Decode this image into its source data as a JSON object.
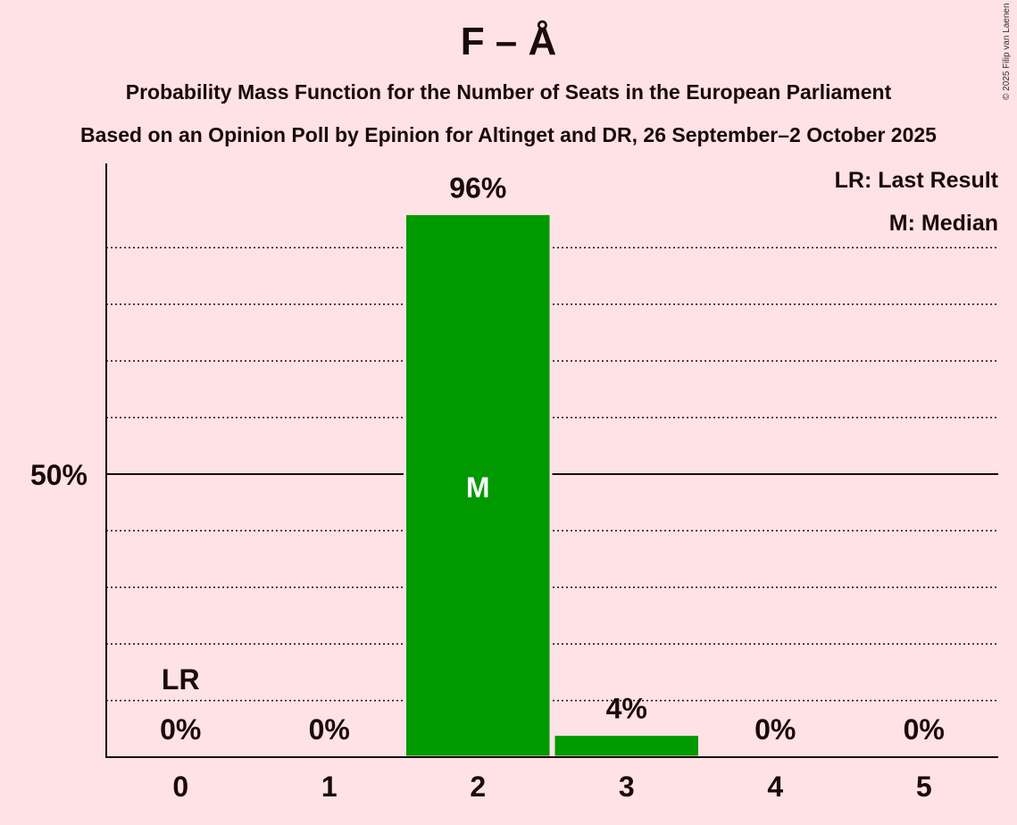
{
  "copyright": "© 2025 Filip van Laenen",
  "chart_data": {
    "type": "bar",
    "title": "F – Å",
    "subtitle1": "Probability Mass Function for the Number of Seats in the European Parliament",
    "subtitle2": "Based on an Opinion Poll by Epinion for Altinget and DR, 26 September–2 October 2025",
    "categories": [
      "0",
      "1",
      "2",
      "3",
      "4",
      "5"
    ],
    "values": [
      0,
      0,
      96,
      4,
      0,
      0
    ],
    "labels": [
      "0%",
      "0%",
      "96%",
      "4%",
      "0%",
      "0%"
    ],
    "ylim": [
      0,
      100
    ],
    "ytick_label": "50%",
    "last_result_index": 0,
    "median_index": 2,
    "lr_marker": "LR",
    "median_marker": "M",
    "legend": [
      "LR: Last Result",
      "M: Median"
    ],
    "legend_position": "top-right",
    "bar_color": "#009900",
    "grid": true
  }
}
